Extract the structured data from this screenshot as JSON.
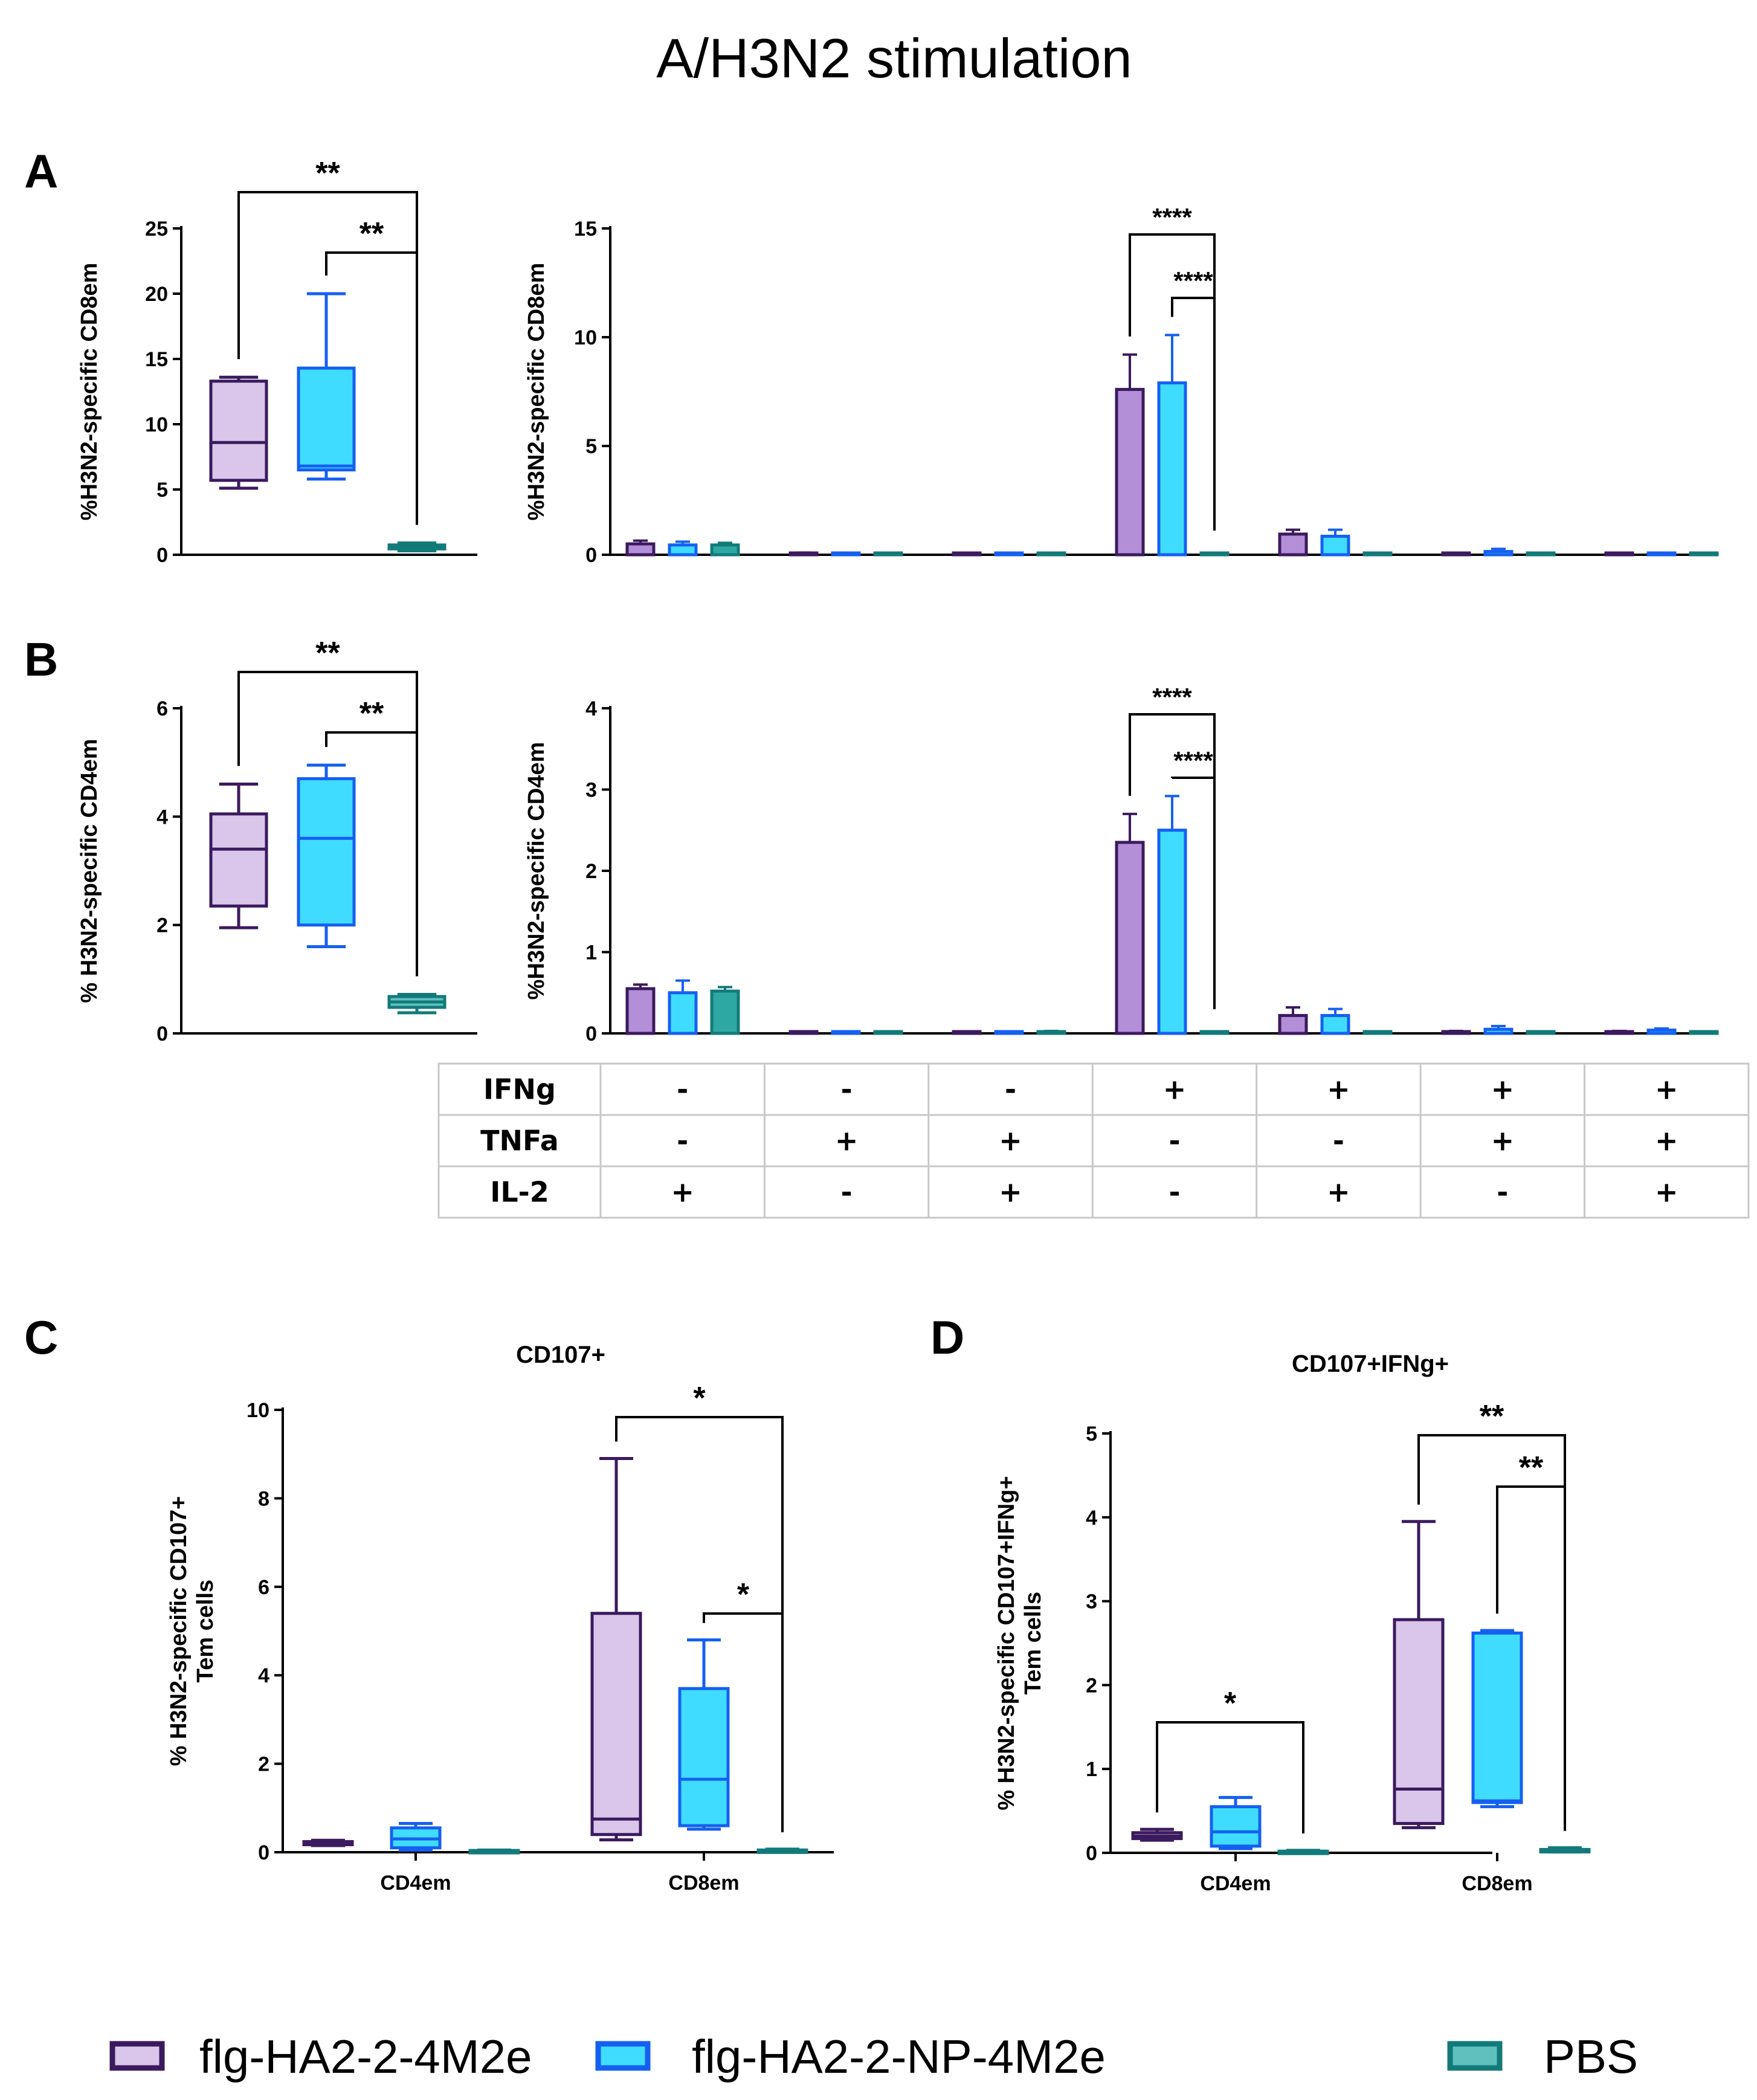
{
  "title": "A/H3N2 stimulation",
  "colors": {
    "g1_edge": "#3b1a5e",
    "g1_fill": "#d9c6ea",
    "g2_edge": "#1560f0",
    "g2_fill": "#40dcff",
    "g3_edge": "#137a7a",
    "g3_fill": "#5fc0bd",
    "g1_bar": "#b38fd8",
    "g3_bar": "#2ea8a2"
  },
  "legend": [
    {
      "label": "flg-HA2-2-4M2e",
      "key": "g1"
    },
    {
      "label": "flg-HA2-2-NP-4M2e",
      "key": "g2"
    },
    {
      "label": "PBS",
      "key": "g3"
    }
  ],
  "table": {
    "rows": [
      {
        "label": "IFNg",
        "values": [
          "-",
          "-",
          "-",
          "+",
          "+",
          "+",
          "+"
        ]
      },
      {
        "label": "TNFa",
        "values": [
          "-",
          "+",
          "+",
          "-",
          "-",
          "+",
          "+"
        ]
      },
      {
        "label": "IL-2",
        "values": [
          "+",
          "-",
          "+",
          "-",
          "+",
          "-",
          "+"
        ]
      }
    ]
  },
  "chart_data": [
    {
      "id": "A-box",
      "panel_label": "A",
      "type": "box",
      "ylabel": "%H3N2-specific CD8em",
      "ylim": [
        0,
        25
      ],
      "yticks": [
        0,
        5,
        10,
        15,
        20,
        25
      ],
      "boxes": [
        {
          "key": "g1",
          "min": 5.1,
          "q1": 5.7,
          "median": 8.6,
          "q3": 13.3,
          "max": 13.6
        },
        {
          "key": "g2",
          "min": 5.8,
          "q1": 6.5,
          "median": 6.8,
          "q3": 14.3,
          "max": 20.0
        },
        {
          "key": "g3",
          "min": 0.3,
          "q1": 0.45,
          "median": 0.6,
          "q3": 0.75,
          "max": 0.9
        }
      ],
      "significance": [
        {
          "from": 0,
          "to": 2,
          "label": "**",
          "level": 0
        },
        {
          "from": 1,
          "to": 2,
          "label": "**",
          "level": 1
        }
      ]
    },
    {
      "id": "A-bar",
      "type": "bar",
      "ylabel": "%H3N2-specific CD8em",
      "ylim": [
        0,
        15
      ],
      "yticks": [
        0,
        5,
        10,
        15
      ],
      "series": [
        {
          "key": "g1",
          "values": [
            0.5,
            0.08,
            0.02,
            7.6,
            0.95,
            0.04,
            0.03
          ],
          "err": [
            0.15,
            0.02,
            0.01,
            1.6,
            0.2,
            0.02,
            0.02
          ]
        },
        {
          "key": "g2",
          "values": [
            0.45,
            0.05,
            0.03,
            7.9,
            0.85,
            0.15,
            0.04
          ],
          "err": [
            0.15,
            0.02,
            0.01,
            2.2,
            0.3,
            0.12,
            0.02
          ]
        },
        {
          "key": "g3",
          "values": [
            0.45,
            0.03,
            0.02,
            0.02,
            0.02,
            0.02,
            0.02
          ],
          "err": [
            0.1,
            0.01,
            0.01,
            0.01,
            0.01,
            0.01,
            0.01
          ]
        }
      ],
      "significance": [
        {
          "group": 3,
          "from": 0,
          "to": 2,
          "label": "****",
          "level": 0
        },
        {
          "group": 3,
          "from": 1,
          "to": 2,
          "label": "****",
          "level": 1
        }
      ]
    },
    {
      "id": "B-box",
      "panel_label": "B",
      "type": "box",
      "ylabel": "% H3N2-specific CD4em",
      "ylim": [
        0,
        6
      ],
      "yticks": [
        0,
        2,
        4,
        6
      ],
      "boxes": [
        {
          "key": "g1",
          "min": 1.95,
          "q1": 2.35,
          "median": 3.4,
          "q3": 4.05,
          "max": 4.6
        },
        {
          "key": "g2",
          "min": 1.6,
          "q1": 2.0,
          "median": 3.6,
          "q3": 4.7,
          "max": 4.95
        },
        {
          "key": "g3",
          "min": 0.38,
          "q1": 0.48,
          "median": 0.58,
          "q3": 0.68,
          "max": 0.72
        }
      ],
      "significance": [
        {
          "from": 0,
          "to": 2,
          "label": "**",
          "level": 0
        },
        {
          "from": 1,
          "to": 2,
          "label": "**",
          "level": 1
        }
      ]
    },
    {
      "id": "B-bar",
      "type": "bar",
      "ylabel": "%H3N2-specific CD4em",
      "ylim": [
        0,
        4
      ],
      "yticks": [
        0,
        1,
        2,
        3,
        4
      ],
      "series": [
        {
          "key": "g1",
          "values": [
            0.55,
            0.01,
            0.01,
            2.35,
            0.22,
            0.02,
            0.02
          ],
          "err": [
            0.05,
            0.005,
            0.005,
            0.35,
            0.1,
            0.01,
            0.01
          ]
        },
        {
          "key": "g2",
          "values": [
            0.5,
            0.01,
            0.01,
            2.5,
            0.22,
            0.05,
            0.04
          ],
          "err": [
            0.15,
            0.005,
            0.005,
            0.42,
            0.08,
            0.04,
            0.02
          ]
        },
        {
          "key": "g3",
          "values": [
            0.52,
            0.01,
            0.02,
            0.01,
            0.01,
            0.01,
            0.01
          ],
          "err": [
            0.05,
            0.005,
            0.01,
            0.005,
            0.005,
            0.005,
            0.005
          ]
        }
      ],
      "significance": [
        {
          "group": 3,
          "from": 0,
          "to": 2,
          "label": "****",
          "level": 0
        },
        {
          "group": 3,
          "from": 1,
          "to": 2,
          "label": "****",
          "level": 1
        }
      ]
    },
    {
      "id": "C-box",
      "panel_label": "C",
      "type": "grouped-box",
      "title": "CD107+",
      "ylabel": [
        "% H3N2-specific CD107+",
        "Tem cells"
      ],
      "ylim": [
        0,
        10
      ],
      "yticks": [
        0,
        2,
        4,
        6,
        8,
        10
      ],
      "categories": [
        "CD4em",
        "CD8em"
      ],
      "groups": [
        [
          {
            "key": "g1",
            "min": 0.15,
            "q1": 0.17,
            "median": 0.2,
            "q3": 0.24,
            "max": 0.27
          },
          {
            "key": "g2",
            "min": 0.05,
            "q1": 0.1,
            "median": 0.3,
            "q3": 0.55,
            "max": 0.65
          },
          {
            "key": "g3",
            "min": 0.01,
            "q1": 0.02,
            "median": 0.03,
            "q3": 0.04,
            "max": 0.05
          }
        ],
        [
          {
            "key": "g1",
            "min": 0.28,
            "q1": 0.4,
            "median": 0.75,
            "q3": 5.4,
            "max": 8.9
          },
          {
            "key": "g2",
            "min": 0.52,
            "q1": 0.6,
            "median": 1.65,
            "q3": 3.7,
            "max": 4.8
          },
          {
            "key": "g3",
            "min": 0.01,
            "q1": 0.02,
            "median": 0.03,
            "q3": 0.05,
            "max": 0.07
          }
        ]
      ],
      "significance": [
        {
          "category": 1,
          "from": 0,
          "to": 2,
          "label": "*",
          "level": 0
        },
        {
          "category": 1,
          "from": 1,
          "to": 2,
          "label": "*",
          "level": 1
        }
      ]
    },
    {
      "id": "D-box",
      "panel_label": "D",
      "type": "grouped-box",
      "title": "CD107+IFNg+",
      "ylabel": [
        "% H3N2-specific CD107+IFNg+",
        "Tem cells"
      ],
      "ylim": [
        0,
        5
      ],
      "yticks": [
        0,
        1,
        2,
        3,
        4,
        5
      ],
      "categories": [
        "CD4em",
        "CD8em"
      ],
      "groups": [
        [
          {
            "key": "g1",
            "min": 0.15,
            "q1": 0.17,
            "median": 0.2,
            "q3": 0.24,
            "max": 0.28
          },
          {
            "key": "g2",
            "min": 0.05,
            "q1": 0.08,
            "median": 0.25,
            "q3": 0.55,
            "max": 0.66
          },
          {
            "key": "g3",
            "min": 0.005,
            "q1": 0.01,
            "median": 0.015,
            "q3": 0.02,
            "max": 0.03
          }
        ],
        [
          {
            "key": "g1",
            "min": 0.3,
            "q1": 0.35,
            "median": 0.76,
            "q3": 2.78,
            "max": 3.95
          },
          {
            "key": "g2",
            "min": 0.55,
            "q1": 0.6,
            "median": 0.62,
            "q3": 2.62,
            "max": 2.65
          },
          {
            "key": "g3",
            "min": 0.01,
            "q1": 0.02,
            "median": 0.03,
            "q3": 0.04,
            "max": 0.06
          }
        ]
      ],
      "significance": [
        {
          "category": 0,
          "from": 0,
          "to": 2,
          "label": "*",
          "level": 0
        },
        {
          "category": 1,
          "from": 0,
          "to": 2,
          "label": "**",
          "level": 0
        },
        {
          "category": 1,
          "from": 1,
          "to": 2,
          "label": "**",
          "level": 1
        }
      ]
    }
  ]
}
